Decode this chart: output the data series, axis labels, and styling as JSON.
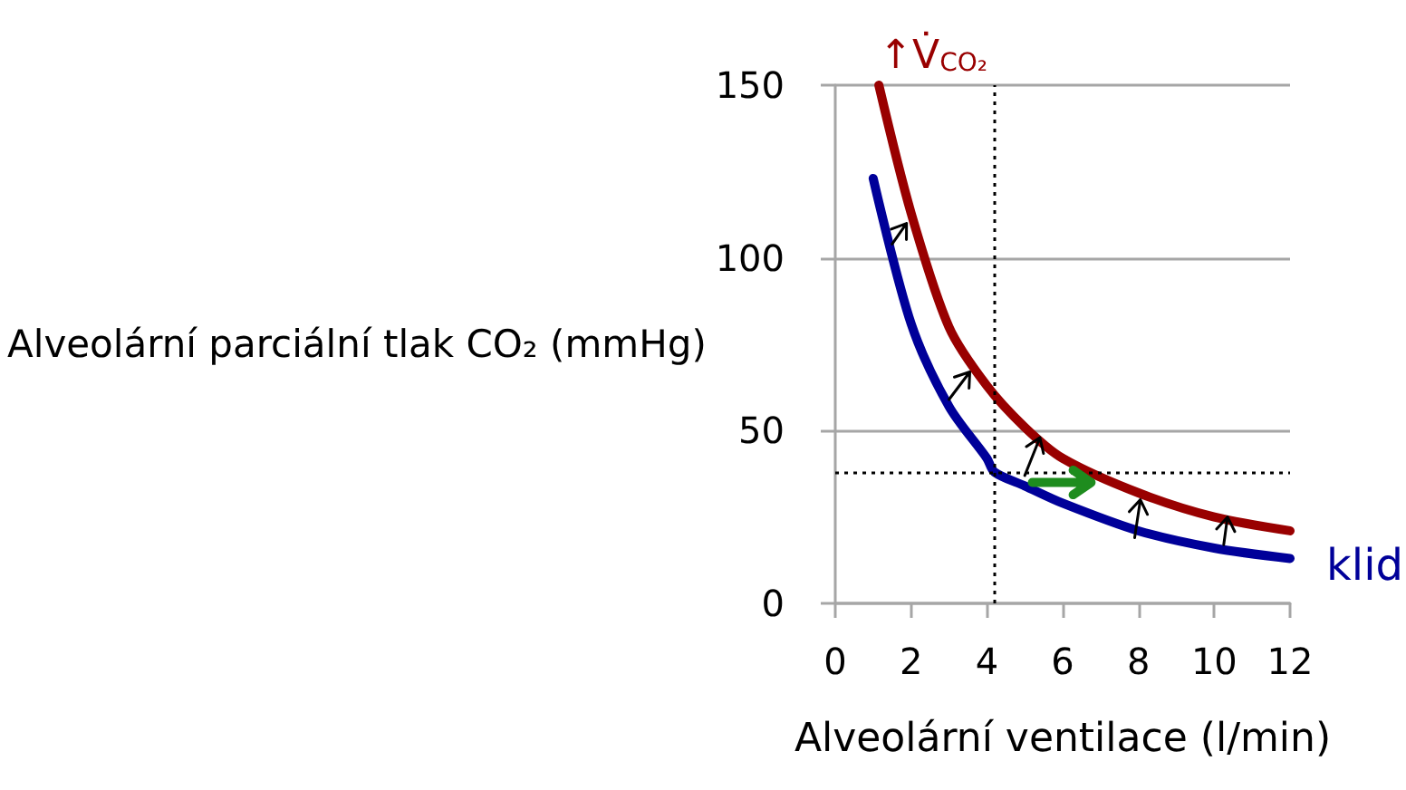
{
  "chart_data": {
    "type": "line",
    "xlabel": "Alveolární ventilace (l/min)",
    "ylabel": "Alveolární parciální tlak CO₂ (mmHg)",
    "x": [
      1,
      2,
      3,
      4,
      4.2,
      5,
      6,
      8,
      10,
      12
    ],
    "series": [
      {
        "name": "klid",
        "color": "#000099",
        "values": [
          123,
          81,
          57,
          42,
          38,
          34,
          29,
          21,
          16,
          13
        ]
      },
      {
        "name": "↑V̇$_{CO₂}$",
        "color": "#990000",
        "x": [
          1.15,
          2,
          3,
          4,
          5,
          6,
          8,
          10,
          12
        ],
        "values": [
          150,
          113,
          80,
          63,
          51,
          42,
          32,
          25,
          21
        ]
      }
    ],
    "xlim": [
      0,
      12
    ],
    "xticks": [
      0,
      2,
      4,
      6,
      8,
      10,
      12
    ],
    "ylim": [
      0,
      150
    ],
    "yticks": [
      0,
      50,
      100,
      150
    ],
    "grid": "y",
    "ref_lines": [
      {
        "axis": "x",
        "value": 4.2,
        "color": "#000000",
        "line_style": "dotted"
      },
      {
        "axis": "y",
        "value": 38,
        "color": "#000000",
        "line_style": "dotted"
      }
    ]
  }
}
